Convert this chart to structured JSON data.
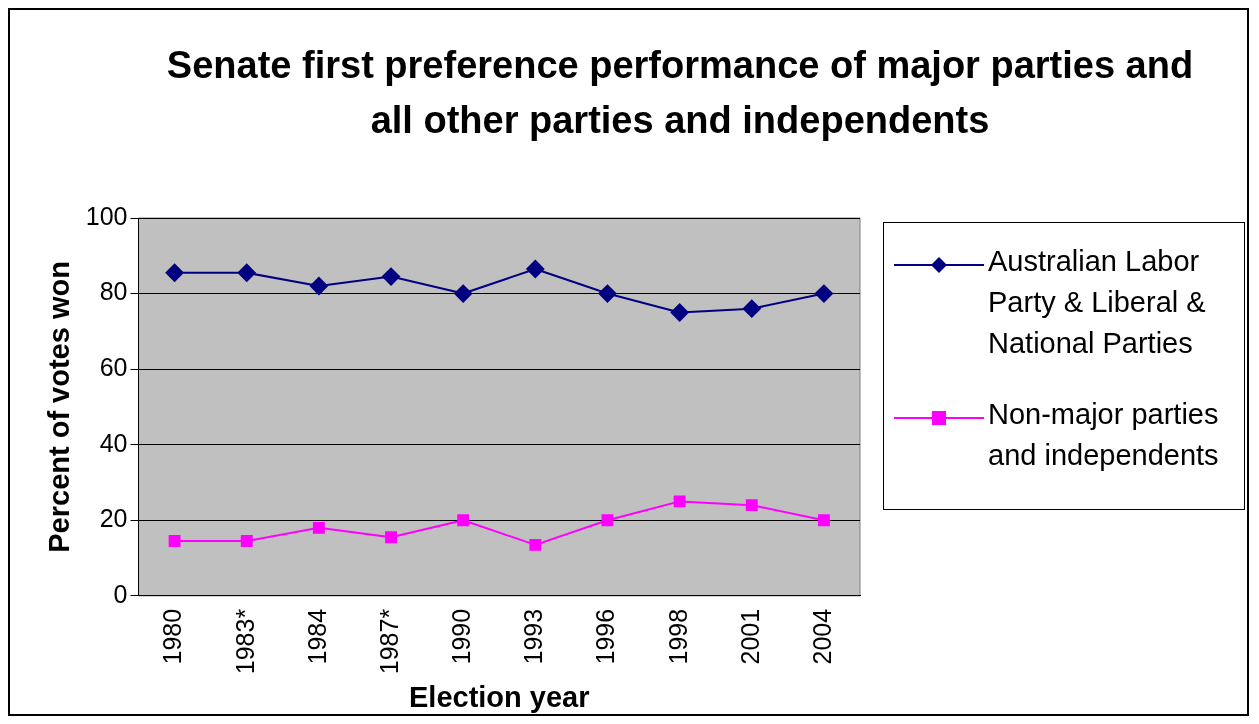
{
  "chart_data": {
    "type": "line",
    "title": "Senate first preference performance of major parties and all other parties and independents",
    "xlabel": "Election year",
    "ylabel": "Percent of votes won",
    "categories": [
      "1980",
      "1983*",
      "1984",
      "1987*",
      "1990",
      "1993",
      "1996",
      "1998",
      "2001",
      "2004"
    ],
    "series": [
      {
        "name": "Australian Labor Party & Liberal & National Parties",
        "color": "#000080",
        "marker": "diamond",
        "values": [
          85.5,
          85.5,
          82,
          84.5,
          80,
          86.5,
          80,
          75,
          76,
          80
        ]
      },
      {
        "name": "Non-major parties and independents",
        "color": "#ff00ff",
        "marker": "square",
        "values": [
          14.5,
          14.5,
          18,
          15.5,
          20,
          13.5,
          20,
          25,
          24,
          20
        ]
      }
    ],
    "ylim": [
      0,
      100
    ],
    "yticks": [
      0,
      20,
      40,
      60,
      80,
      100
    ],
    "grid": "y",
    "legend": "right",
    "line_style": "solid"
  }
}
